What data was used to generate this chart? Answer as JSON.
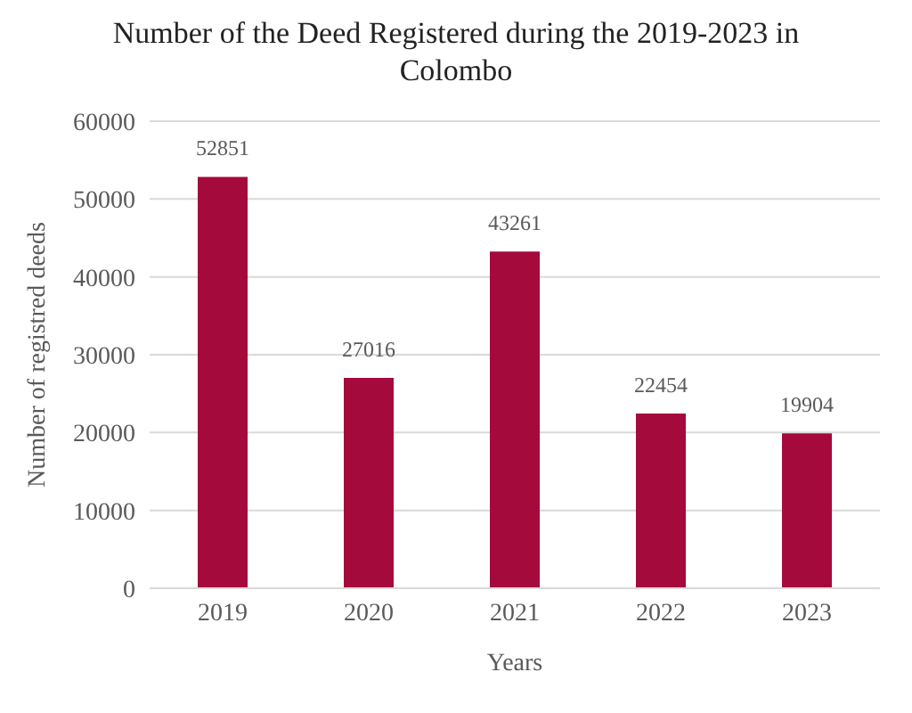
{
  "chart_data": {
    "type": "bar",
    "title": "Number of the Deed Registered during the 2019-2023 in Colombo",
    "xlabel": "Years",
    "ylabel": "Number of registred deeds",
    "categories": [
      "2019",
      "2020",
      "2021",
      "2022",
      "2023"
    ],
    "values": [
      52851,
      27016,
      43261,
      22454,
      19904
    ],
    "color": "#a50a3c",
    "ylim": [
      0,
      60000
    ],
    "yticks": [
      0,
      10000,
      20000,
      30000,
      40000,
      50000,
      60000
    ],
    "grid": "y",
    "data_labels": true,
    "legend": false
  }
}
